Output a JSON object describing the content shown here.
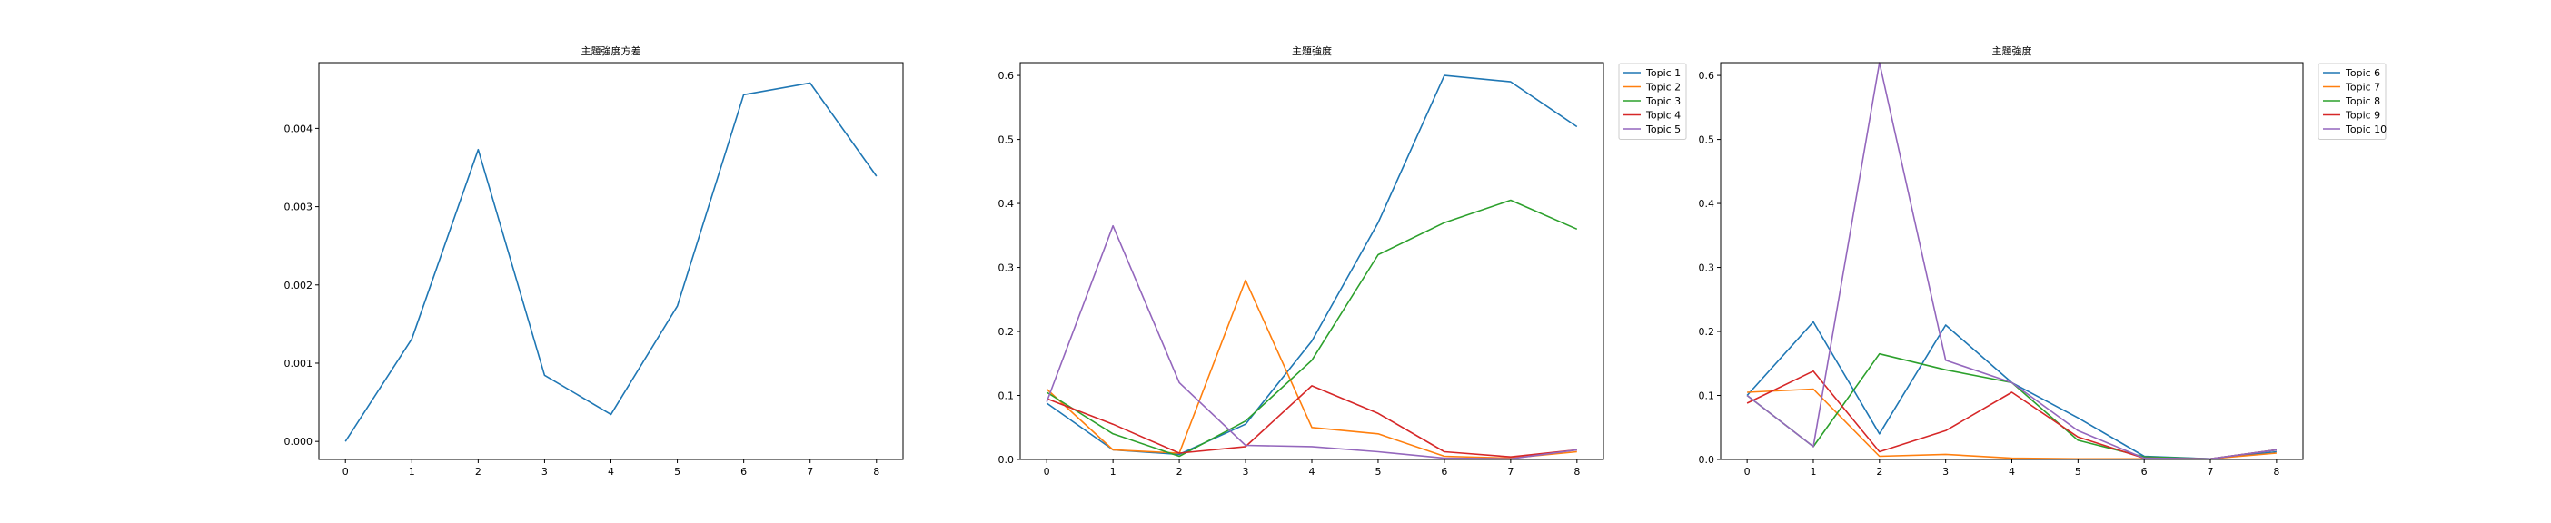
{
  "chart_data": [
    {
      "type": "line",
      "title": "主題強度方差",
      "xlabel": "",
      "ylabel": "",
      "x": [
        0,
        1,
        2,
        3,
        4,
        5,
        6,
        7,
        8
      ],
      "xlim": [
        -0.4,
        8.4
      ],
      "ylim": [
        -0.00023,
        0.00484
      ],
      "xticks": [
        "0",
        "1",
        "2",
        "3",
        "4",
        "5",
        "6",
        "7",
        "8"
      ],
      "yticks": [
        "0.000",
        "0.001",
        "0.002",
        "0.003",
        "0.004"
      ],
      "ytick_values": [
        0,
        0.001,
        0.002,
        0.003,
        0.004
      ],
      "legend": "none",
      "grid": false,
      "series": [
        {
          "color": "#1f77b4",
          "values": [
            0.0,
            0.00131,
            0.00373,
            0.000845,
            0.000345,
            0.00173,
            0.00443,
            0.00458,
            0.00339
          ]
        }
      ]
    },
    {
      "type": "line",
      "title": "主題強度",
      "xlabel": "",
      "ylabel": "",
      "x": [
        0,
        1,
        2,
        3,
        4,
        5,
        6,
        7,
        8
      ],
      "xlim": [
        -0.4,
        8.4
      ],
      "ylim": [
        0,
        0.62
      ],
      "xticks": [
        "0",
        "1",
        "2",
        "3",
        "4",
        "5",
        "6",
        "7",
        "8"
      ],
      "yticks": [
        "0.0",
        "0.1",
        "0.2",
        "0.3",
        "0.4",
        "0.5",
        "0.6"
      ],
      "ytick_values": [
        0,
        0.1,
        0.2,
        0.3,
        0.4,
        0.5,
        0.6
      ],
      "legend": "outside-top-right",
      "grid": false,
      "series": [
        {
          "name": "Topic 1",
          "color": "#1f77b4",
          "values": [
            0.088,
            0.015,
            0.008,
            0.055,
            0.185,
            0.37,
            0.6,
            0.59,
            0.52
          ]
        },
        {
          "name": "Topic 2",
          "color": "#ff7f0e",
          "values": [
            0.11,
            0.015,
            0.01,
            0.28,
            0.05,
            0.04,
            0.005,
            0.002,
            0.012
          ]
        },
        {
          "name": "Topic 3",
          "color": "#2ca02c",
          "values": [
            0.105,
            0.04,
            0.005,
            0.06,
            0.155,
            0.32,
            0.37,
            0.405,
            0.36
          ]
        },
        {
          "name": "Topic 4",
          "color": "#d62728",
          "values": [
            0.095,
            0.055,
            0.01,
            0.02,
            0.115,
            0.072,
            0.012,
            0.004,
            0.015
          ]
        },
        {
          "name": "Topic 5",
          "color": "#9467bd",
          "values": [
            0.09,
            0.365,
            0.12,
            0.022,
            0.02,
            0.012,
            0.002,
            0.001,
            0.015
          ]
        }
      ]
    },
    {
      "type": "line",
      "title": "主題強度",
      "xlabel": "",
      "ylabel": "",
      "x": [
        0,
        1,
        2,
        3,
        4,
        5,
        6,
        7,
        8
      ],
      "xlim": [
        -0.4,
        8.4
      ],
      "ylim": [
        0,
        0.62
      ],
      "xticks": [
        "0",
        "1",
        "2",
        "3",
        "4",
        "5",
        "6",
        "7",
        "8"
      ],
      "yticks": [
        "0.0",
        "0.1",
        "0.2",
        "0.3",
        "0.4",
        "0.5",
        "0.6"
      ],
      "ytick_values": [
        0,
        0.1,
        0.2,
        0.3,
        0.4,
        0.5,
        0.6
      ],
      "legend": "outside-top-right",
      "grid": false,
      "series": [
        {
          "name": "Topic 6",
          "color": "#1f77b4",
          "values": [
            0.1,
            0.215,
            0.04,
            0.21,
            0.12,
            0.065,
            0.005,
            0.001,
            0.012
          ]
        },
        {
          "name": "Topic 7",
          "color": "#ff7f0e",
          "values": [
            0.105,
            0.11,
            0.005,
            0.008,
            0.002,
            0.001,
            0.001,
            0.001,
            0.01
          ]
        },
        {
          "name": "Topic 8",
          "color": "#2ca02c",
          "values": [
            0.1,
            0.02,
            0.165,
            0.14,
            0.12,
            0.03,
            0.004,
            0.001,
            0.015
          ]
        },
        {
          "name": "Topic 9",
          "color": "#d62728",
          "values": [
            0.088,
            0.138,
            0.012,
            0.045,
            0.105,
            0.035,
            0.002,
            0.001,
            0.015
          ]
        },
        {
          "name": "Topic 10",
          "color": "#9467bd",
          "values": [
            0.1,
            0.02,
            0.62,
            0.155,
            0.12,
            0.045,
            0.002,
            0.001,
            0.015
          ]
        }
      ]
    }
  ]
}
